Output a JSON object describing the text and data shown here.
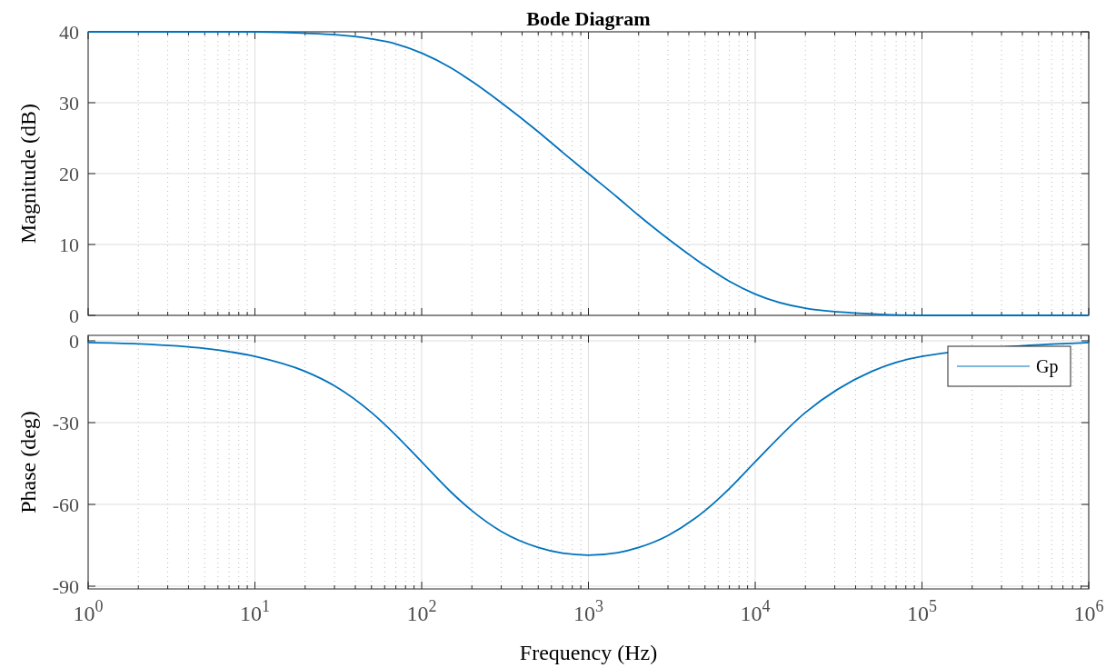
{
  "chart_data": [
    {
      "type": "line",
      "title": "Bode Diagram",
      "ylabel": "Magnitude (dB)",
      "log": "x",
      "grid": true,
      "tick_labels": "y",
      "xlim": [
        1,
        1000000
      ],
      "xticks": [
        {
          "value": 1,
          "label": null
        },
        {
          "value": 10,
          "label": null
        },
        {
          "value": 100,
          "label": null
        },
        {
          "value": 1000,
          "label": null
        },
        {
          "value": 10000,
          "label": null
        },
        {
          "value": 100000,
          "label": null
        },
        {
          "value": 1000000,
          "label": null
        }
      ],
      "ylim": [
        0,
        40
      ],
      "yticks": [
        0,
        10,
        20,
        30,
        40
      ],
      "x": [
        1,
        2,
        5,
        10,
        20,
        30,
        50,
        70,
        100,
        150,
        200,
        300,
        500,
        700,
        1000,
        1500,
        2000,
        3000,
        5000,
        7000,
        10000,
        20000,
        50000,
        100000,
        1000000
      ],
      "series": [
        {
          "color": "#0072bd",
          "values": [
            40.0,
            40.0,
            40.0,
            40.0,
            39.8,
            39.6,
            39.0,
            38.3,
            37.0,
            34.9,
            33.0,
            30.0,
            25.9,
            23.0,
            20.0,
            16.6,
            14.1,
            10.8,
            7.0,
            4.8,
            3.0,
            1.0,
            0.2,
            0.0,
            0.0
          ]
        }
      ]
    },
    {
      "type": "line",
      "ylabel": "Phase (deg)",
      "xlabel": "Frequency  (Hz)",
      "log": "x",
      "grid": true,
      "legend": "top right",
      "xlim": [
        1,
        1000000
      ],
      "xticks": [
        {
          "value": 1,
          "label": "10$^{0}$"
        },
        {
          "value": 10,
          "label": "10$^{1}$"
        },
        {
          "value": 100,
          "label": "10$^{2}$"
        },
        {
          "value": 1000,
          "label": "10$^{3}$"
        },
        {
          "value": 10000,
          "label": "10$^{4}$"
        },
        {
          "value": 100000,
          "label": "10$^{5}$"
        },
        {
          "value": 1000000,
          "label": "10$^{6}$"
        }
      ],
      "ylim": [
        -91,
        2
      ],
      "yticks": [
        -90,
        -60,
        -30,
        0
      ],
      "x": [
        1,
        2,
        5,
        10,
        20,
        30,
        50,
        70,
        100,
        150,
        200,
        300,
        500,
        700,
        1000,
        1500,
        2000,
        3000,
        5000,
        7000,
        10000,
        20000,
        50000,
        100000,
        1000000
      ],
      "series": [
        {
          "name": "Gp",
          "color": "#0072bd",
          "values": [
            -0.6,
            -1.1,
            -2.8,
            -5.7,
            -11.2,
            -16.5,
            -26.3,
            -34.6,
            -44.4,
            -55.5,
            -62.3,
            -69.9,
            -75.8,
            -77.9,
            -78.6,
            -77.7,
            -75.8,
            -71.4,
            -62.3,
            -54.2,
            -44.4,
            -26.3,
            -11.2,
            -5.7,
            -0.6
          ]
        }
      ]
    }
  ]
}
